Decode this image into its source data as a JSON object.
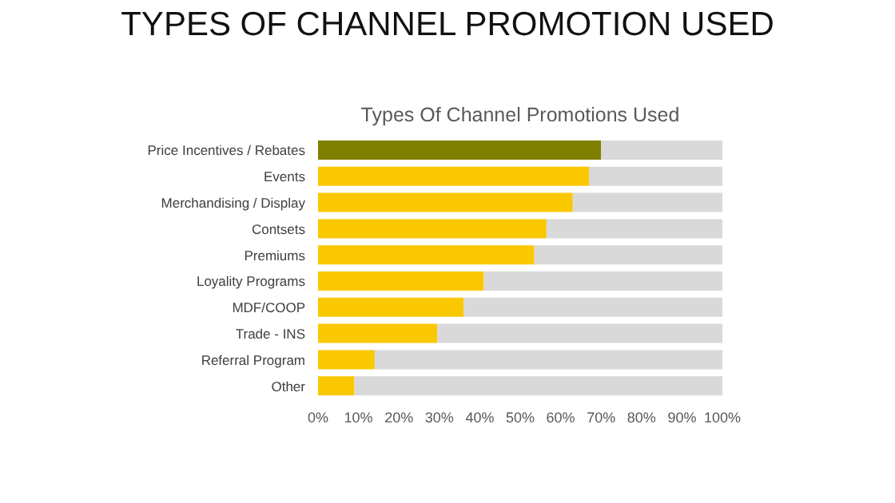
{
  "chart_data": {
    "type": "bar",
    "title": "TYPES OF CHANNEL PROMOTION USED",
    "subtitle": "Types Of Channel Promotions Used",
    "orientation": "horizontal",
    "stacked": true,
    "categories": [
      "Price Incentives / Rebates",
      "Events",
      "Merchandising / Display",
      "Contsets",
      "Premiums",
      "Loyality Programs",
      "MDF/COOP",
      "Trade - INS",
      "Referral Program",
      "Other"
    ],
    "series": [
      {
        "values": [
          70,
          67,
          63,
          56.5,
          53.5,
          41,
          36,
          29.5,
          14,
          9
        ],
        "colors": [
          "#7f7f00",
          "#fac800",
          "#fac800",
          "#fac800",
          "#fac800",
          "#fac800",
          "#fac800",
          "#fac800",
          "#fac800",
          "#fac800"
        ]
      },
      {
        "values": [
          30,
          33,
          37,
          43.5,
          46.5,
          59,
          64,
          70.5,
          86,
          91
        ],
        "color": "#d9d9d9"
      }
    ],
    "xlim": [
      0,
      100
    ],
    "xticks": [
      {
        "value": 0,
        "label": "0%"
      },
      {
        "value": 10,
        "label": "10%"
      },
      {
        "value": 20,
        "label": "20%"
      },
      {
        "value": 30,
        "label": "30%"
      },
      {
        "value": 40,
        "label": "40%"
      },
      {
        "value": 50,
        "label": "50%"
      },
      {
        "value": 60,
        "label": "60%"
      },
      {
        "value": 70,
        "label": "70%"
      },
      {
        "value": 80,
        "label": "80%"
      },
      {
        "value": 90,
        "label": "90%"
      },
      {
        "value": 100,
        "label": "100%"
      }
    ],
    "grid": false,
    "legend": false
  }
}
